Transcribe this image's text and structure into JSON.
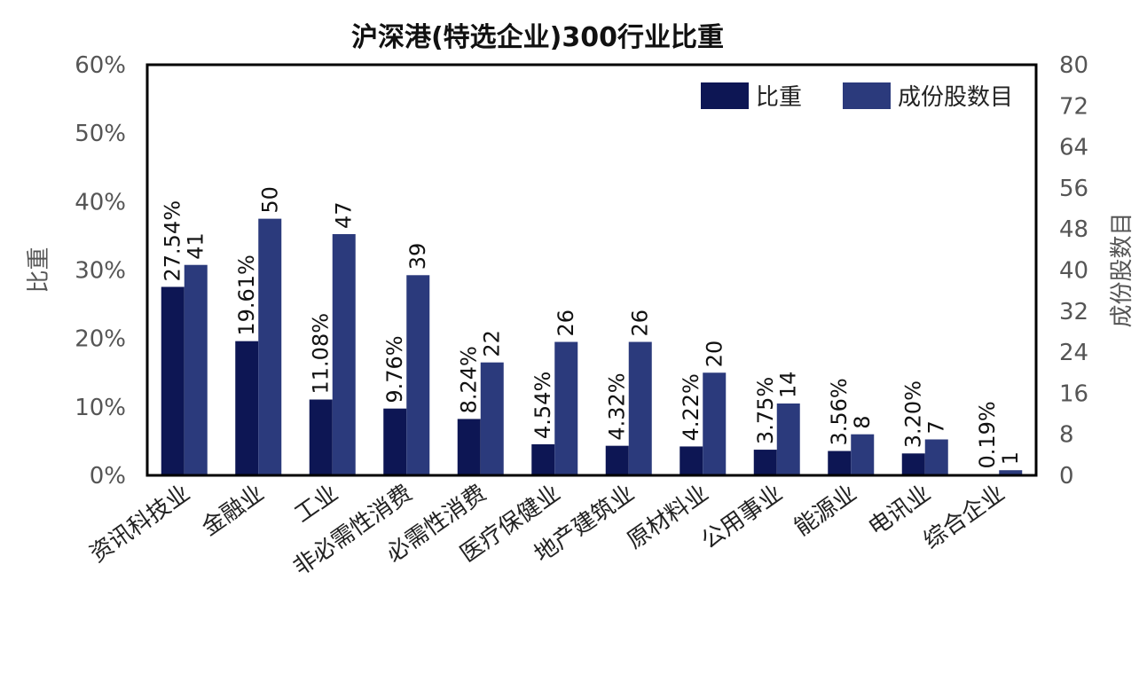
{
  "chart_data": {
    "type": "bar",
    "title": "沪深港(特选企业)300行业比重",
    "categories": [
      "资讯科技业",
      "金融业",
      "工业",
      "非必需性消费",
      "必需性消费",
      "医疗保健业",
      "地产建筑业",
      "原材料业",
      "公用事业",
      "能源业",
      "电讯业",
      "综合企业"
    ],
    "series": [
      {
        "name": "比重",
        "axis": "left",
        "color": "#0d1654",
        "values": [
          27.54,
          19.61,
          11.08,
          9.76,
          8.24,
          4.54,
          4.32,
          4.22,
          3.75,
          3.56,
          3.2,
          0.19
        ],
        "labels": [
          "27.54%",
          "19.61%",
          "11.08%",
          "9.76%",
          "8.24%",
          "4.54%",
          "4.32%",
          "4.22%",
          "3.75%",
          "3.56%",
          "3.20%",
          "0.19%"
        ]
      },
      {
        "name": "成份股数目",
        "axis": "right",
        "color": "#2b3a7c",
        "values": [
          41,
          50,
          47,
          39,
          22,
          26,
          26,
          20,
          14,
          8,
          7,
          1
        ],
        "labels": [
          "41",
          "50",
          "47",
          "39",
          "22",
          "26",
          "26",
          "20",
          "14",
          "8",
          "7",
          "1"
        ]
      }
    ],
    "ylabel": "比重",
    "y2label": "成份股数目",
    "ylim": [
      0,
      60
    ],
    "y2lim": [
      0,
      80
    ],
    "yticks": [
      "0%",
      "10%",
      "20%",
      "30%",
      "40%",
      "50%",
      "60%"
    ],
    "y2ticks": [
      "0",
      "8",
      "16",
      "24",
      "32",
      "40",
      "48",
      "56",
      "64",
      "72",
      "80"
    ],
    "legend_position": "top-right",
    "grid": false
  }
}
